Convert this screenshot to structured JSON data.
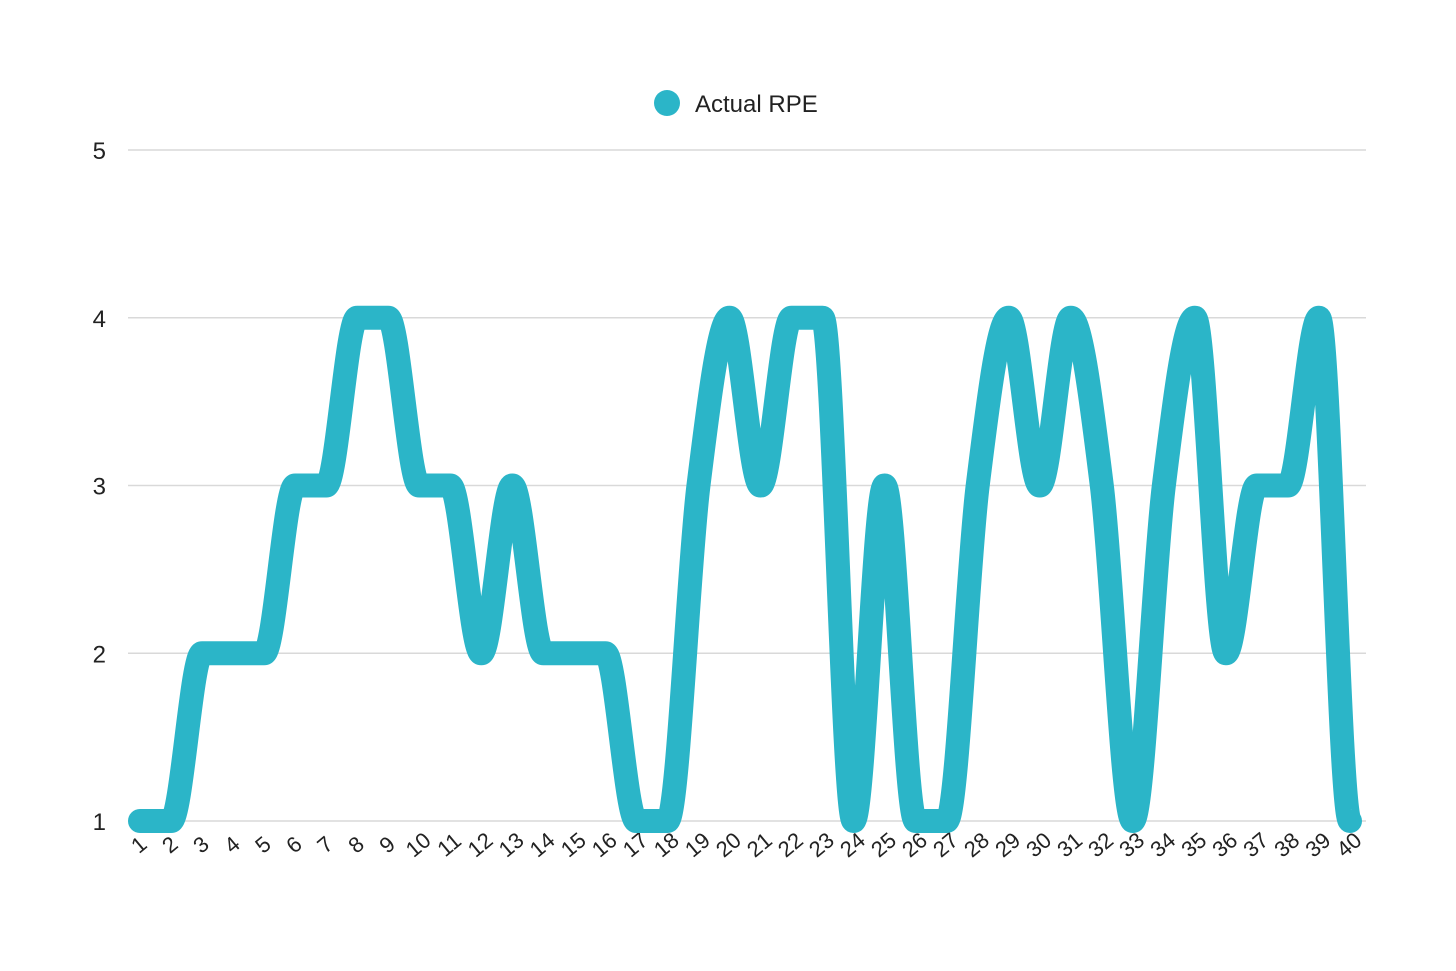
{
  "chart_data": {
    "type": "line",
    "title": "",
    "xlabel": "",
    "ylabel": "",
    "x": [
      1,
      2,
      3,
      4,
      5,
      6,
      7,
      8,
      9,
      10,
      11,
      12,
      13,
      14,
      15,
      16,
      17,
      18,
      19,
      20,
      21,
      22,
      23,
      24,
      25,
      26,
      27,
      28,
      29,
      30,
      31,
      32,
      33,
      34,
      35,
      36,
      37,
      38,
      39,
      40
    ],
    "x_tick_labels": [
      "1",
      "2",
      "3",
      "4",
      "5",
      "6",
      "7",
      "8",
      "9",
      "10",
      "11",
      "12",
      "13",
      "14",
      "15",
      "16",
      "17",
      "18",
      "19",
      "20",
      "21",
      "22",
      "23",
      "24",
      "25",
      "26",
      "27",
      "28",
      "29",
      "30",
      "31",
      "32",
      "33",
      "34",
      "35",
      "36",
      "37",
      "38",
      "39",
      "40"
    ],
    "y_ticks": [
      1,
      2,
      3,
      4,
      5
    ],
    "y_tick_labels": [
      "1",
      "2",
      "3",
      "4",
      "5"
    ],
    "ylim": [
      1,
      5
    ],
    "grid": true,
    "smooth": true,
    "legend_position": "top-center",
    "series": [
      {
        "name": "Actual RPE",
        "color": "#2bb5c8",
        "values": [
          1,
          1,
          2,
          2,
          2,
          3,
          3,
          4,
          4,
          3,
          3,
          2,
          3,
          2,
          2,
          2,
          1,
          1,
          3,
          4,
          3,
          4,
          4,
          1,
          3,
          1,
          1,
          3,
          4,
          3,
          4,
          3,
          1,
          3,
          4,
          2,
          3,
          3,
          4,
          1
        ]
      }
    ]
  }
}
